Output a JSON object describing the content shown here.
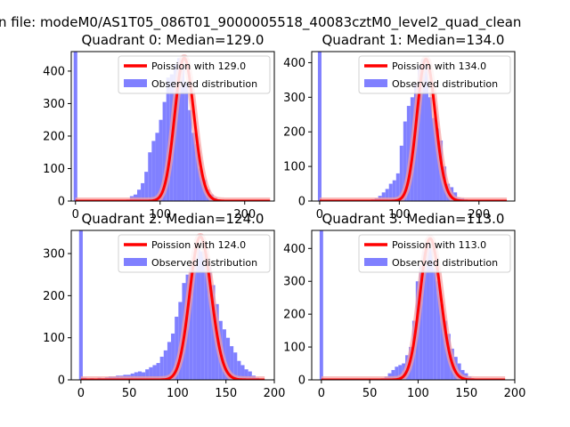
{
  "figure": {
    "suptitle": "n file: modeM0/AS1T05_086T01_9000005518_40083cztM0_level2_quad_clean"
  },
  "colors": {
    "observed": "#8080ff",
    "poisson": "#ff0000",
    "poisson_glow": "#f6a0a0"
  },
  "chart_data": [
    {
      "type": "bar",
      "title": "Quadrant 0: Median=129.0",
      "xlim": [
        -5,
        235
      ],
      "ylim": [
        0,
        460
      ],
      "xticks": [
        0,
        100,
        200
      ],
      "xtick_labels": [
        "0",
        "100",
        "200"
      ],
      "yticks": [
        0,
        100,
        200,
        300,
        400
      ],
      "ytick_labels": [
        "0",
        "100",
        "200",
        "300",
        "400"
      ],
      "bin_width": 4.3,
      "spike": {
        "x": 0,
        "height": 460
      },
      "bins_start": [
        60,
        64.3,
        68.6,
        72.9,
        77.2,
        81.5,
        85.8,
        90.1,
        94.4,
        98.7,
        103,
        107.3,
        111.6,
        115.9,
        120.2,
        124.5,
        128.8,
        133.1,
        137.4,
        141.7,
        146,
        150.3,
        154.6,
        158.9,
        163.2,
        167.5,
        171.8
      ],
      "counts": [
        5,
        15,
        20,
        35,
        55,
        90,
        150,
        185,
        210,
        250,
        305,
        380,
        390,
        420,
        440,
        410,
        365,
        280,
        210,
        175,
        100,
        65,
        35,
        20,
        10,
        5,
        3
      ],
      "poisson_mean": 129.0,
      "poisson_scale": 440,
      "poisson_xrange": [
        0,
        230
      ],
      "legend": {
        "placement": "upper right",
        "entries": [
          "Poission with 129.0",
          "Observed distribution"
        ]
      }
    },
    {
      "type": "bar",
      "title": "Quadrant 1: Median=134.0",
      "xlim": [
        -10,
        245
      ],
      "ylim": [
        0,
        432
      ],
      "xticks": [
        0,
        100,
        200
      ],
      "xtick_labels": [
        "0",
        "100",
        "200"
      ],
      "yticks": [
        0,
        100,
        200,
        300,
        400
      ],
      "ytick_labels": [
        "0",
        "100",
        "200",
        "300",
        "400"
      ],
      "bin_width": 4.5,
      "spike": {
        "x": 0,
        "height": 432
      },
      "bins_start": [
        60,
        64.5,
        69,
        73.5,
        78,
        82.5,
        87,
        91.5,
        96,
        100.5,
        105,
        109.5,
        114,
        118.5,
        123,
        127.5,
        132,
        136.5,
        141,
        145.5,
        150,
        154.5,
        159,
        163.5,
        168,
        172.5,
        177,
        181.5,
        186,
        190.5
      ],
      "counts": [
        2,
        5,
        8,
        15,
        25,
        35,
        50,
        60,
        80,
        160,
        230,
        275,
        300,
        340,
        390,
        410,
        395,
        300,
        240,
        210,
        175,
        100,
        50,
        40,
        25,
        10,
        8,
        5,
        3,
        2
      ],
      "poisson_mean": 134.0,
      "poisson_scale": 410,
      "poisson_xrange": [
        0,
        235
      ],
      "legend": {
        "placement": "upper right",
        "entries": [
          "Poission with 134.0",
          "Observed distribution"
        ]
      }
    },
    {
      "type": "bar",
      "title": "Quadrant 2: Median=124.0",
      "xlim": [
        -10,
        200
      ],
      "ylim": [
        0,
        355
      ],
      "xticks": [
        0,
        50,
        100,
        150,
        200
      ],
      "xtick_labels": [
        "0",
        "50",
        "100",
        "150",
        "200"
      ],
      "yticks": [
        0,
        100,
        200,
        300
      ],
      "ytick_labels": [
        "0",
        "100",
        "200",
        "300"
      ],
      "bin_width": 3.8,
      "spike": {
        "x": 0,
        "height": 355
      },
      "bins_start": [
        2,
        5.8,
        9.6,
        13.4,
        17.2,
        21,
        24.8,
        28.6,
        32.4,
        36.2,
        40,
        43.8,
        47.6,
        51.4,
        55.2,
        59,
        62.8,
        66.6,
        70.4,
        74.2,
        78,
        81.8,
        85.6,
        89.4,
        93.2,
        97,
        100.8,
        104.6,
        108.4,
        112.2,
        116,
        119.8,
        123.6,
        127.4,
        131.2,
        135,
        138.8,
        142.6,
        146.4,
        150.2,
        154,
        157.8,
        161.6,
        165.4,
        169.2,
        173,
        176.8,
        180.6,
        184.4
      ],
      "counts": [
        5,
        3,
        4,
        2,
        5,
        4,
        6,
        8,
        8,
        10,
        10,
        12,
        12,
        15,
        18,
        20,
        18,
        25,
        30,
        35,
        40,
        55,
        70,
        90,
        110,
        150,
        185,
        230,
        250,
        270,
        290,
        310,
        305,
        300,
        270,
        225,
        180,
        140,
        120,
        100,
        80,
        65,
        45,
        35,
        25,
        20,
        10,
        5,
        3
      ],
      "poisson_mean": 124.0,
      "poisson_scale": 340,
      "poisson_xrange": [
        0,
        190
      ],
      "legend": {
        "placement": "upper right",
        "entries": [
          "Poission with 124.0",
          "Observed distribution"
        ]
      }
    },
    {
      "type": "bar",
      "title": "Quadrant 3: Median=113.0",
      "xlim": [
        -10,
        200
      ],
      "ylim": [
        0,
        455
      ],
      "xticks": [
        0,
        50,
        100,
        150,
        200
      ],
      "xtick_labels": [
        "0",
        "50",
        "100",
        "150",
        "200"
      ],
      "yticks": [
        0,
        100,
        200,
        300,
        400
      ],
      "ytick_labels": [
        "0",
        "100",
        "200",
        "300",
        "400"
      ],
      "bin_width": 3.6,
      "spike": {
        "x": 0,
        "height": 455
      },
      "bins_start": [
        58,
        61.6,
        65.2,
        68.8,
        72.4,
        76,
        79.6,
        83.2,
        86.8,
        90.4,
        94,
        97.6,
        101.2,
        104.8,
        108.4,
        112,
        115.6,
        119.2,
        122.8,
        126.4,
        130,
        133.6,
        137.2,
        140.8,
        144.4,
        148,
        151.6,
        155.2,
        158.8
      ],
      "counts": [
        3,
        5,
        10,
        20,
        30,
        40,
        45,
        50,
        75,
        100,
        180,
        300,
        350,
        390,
        420,
        400,
        340,
        300,
        230,
        180,
        140,
        95,
        70,
        50,
        30,
        20,
        10,
        5,
        3
      ],
      "poisson_mean": 113.0,
      "poisson_scale": 430,
      "poisson_xrange": [
        0,
        190
      ],
      "legend": {
        "placement": "upper right",
        "entries": [
          "Poission with 113.0",
          "Observed distribution"
        ]
      }
    }
  ]
}
